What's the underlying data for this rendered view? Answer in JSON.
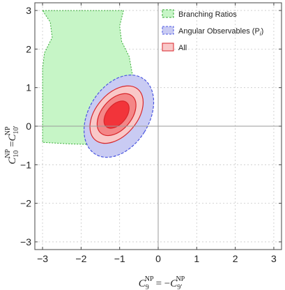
{
  "chart_data": {
    "type": "contour",
    "xlim": [
      -3.2,
      3.2
    ],
    "ylim": [
      -3.2,
      3.2
    ],
    "x_ticks": [
      -3,
      -2,
      -1,
      0,
      1,
      2,
      3
    ],
    "y_ticks": [
      -3,
      -2,
      -1,
      0,
      1,
      2,
      3
    ],
    "x_tick_labels": [
      "−3",
      "−2",
      "−1",
      "0",
      "1",
      "2",
      "3"
    ],
    "y_tick_labels": [
      "−3",
      "−2",
      "−1",
      "0",
      "1",
      "2",
      "3"
    ],
    "xlabel": {
      "lhs_base": "C",
      "lhs_sup": "NP",
      "lhs_sub": "9",
      "eq": "= −",
      "rhs_base": "C",
      "rhs_sup": "NP",
      "rhs_sub": "9′"
    },
    "ylabel": {
      "lhs_base": "C",
      "lhs_sup": "NP",
      "lhs_sub": "10",
      "eq": "=",
      "rhs_base": "C",
      "rhs_sup": "NP",
      "rhs_sub": "10′"
    },
    "grid": true,
    "legend_position": "top-right",
    "legend": [
      {
        "label": "Branching Ratios",
        "series": "br"
      },
      {
        "label": "Angular Observables (P",
        "label_sub": "i",
        "label_end": ")",
        "series": "ang"
      },
      {
        "label": "All",
        "series": "all"
      }
    ],
    "series": [
      {
        "id": "br",
        "fill": "#c6f5c6",
        "stroke": "#33aa33",
        "dashed": true,
        "polygon": [
          [
            -3.0,
            3.0
          ],
          [
            -0.9,
            3.0
          ],
          [
            -1.0,
            2.6
          ],
          [
            -0.95,
            2.2
          ],
          [
            -0.75,
            1.8
          ],
          [
            -0.68,
            1.4
          ],
          [
            -0.6,
            1.0
          ],
          [
            -0.58,
            0.6
          ],
          [
            -0.62,
            0.2
          ],
          [
            -0.72,
            -0.1
          ],
          [
            -0.85,
            -0.32
          ],
          [
            -1.1,
            -0.42
          ],
          [
            -1.6,
            -0.48
          ],
          [
            -2.3,
            -0.46
          ],
          [
            -3.0,
            -0.42
          ],
          [
            -3.0,
            1.5
          ],
          [
            -2.95,
            1.9
          ],
          [
            -2.75,
            2.3
          ],
          [
            -2.8,
            2.7
          ]
        ]
      },
      {
        "id": "ang",
        "ellipse": {
          "cx": -1.02,
          "cy": 0.26,
          "rx": 0.78,
          "ry": 1.16,
          "rotate_deg": -32
        },
        "fill": "#c9cbf3",
        "stroke": "#4a56e0",
        "dashed": true
      },
      {
        "id": "all",
        "fill": "#f9c8c8",
        "stroke": "#d8262b",
        "dashed": false,
        "levels": [
          {
            "ellipse": {
              "cx": -1.08,
              "cy": 0.3,
              "rx": 0.54,
              "ry": 0.86,
              "rotate_deg": -40
            },
            "fill": "#f9c8c8"
          },
          {
            "ellipse": {
              "cx": -1.08,
              "cy": 0.3,
              "rx": 0.39,
              "ry": 0.63,
              "rotate_deg": -40
            },
            "fill": "#f48687"
          },
          {
            "ellipse": {
              "cx": -1.08,
              "cy": 0.3,
              "rx": 0.25,
              "ry": 0.41,
              "rotate_deg": -40
            },
            "fill": "#f2343a"
          }
        ]
      }
    ]
  }
}
